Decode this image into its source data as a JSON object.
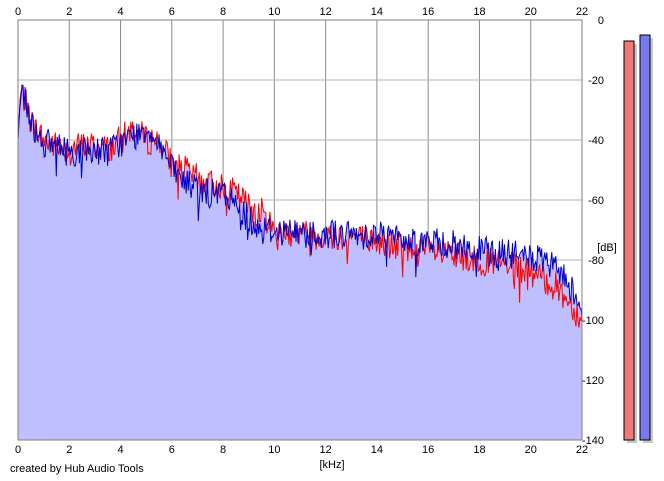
{
  "credit": "created by Hub Audio Tools",
  "chart_data": {
    "type": "area",
    "xlabel": "[kHz]",
    "ylabel": "[dB]",
    "xlim": [
      0,
      22
    ],
    "ylim": [
      -140,
      0
    ],
    "x_ticks": [
      "0",
      "2",
      "4",
      "6",
      "8",
      "10",
      "12",
      "14",
      "16",
      "18",
      "20",
      "22"
    ],
    "y_ticks": [
      "0",
      "-20",
      "-40",
      "-60",
      "-80",
      "-100",
      "-120",
      "-140"
    ],
    "grid": true,
    "series": [
      {
        "color": "#ff0000",
        "level_db": -7,
        "x": [
          0,
          0.1,
          0.25,
          0.5,
          1,
          1.5,
          2,
          2.5,
          3,
          3.5,
          4,
          4.5,
          5,
          5.5,
          6,
          6.5,
          7,
          7.5,
          8,
          8.5,
          9,
          9.5,
          10,
          11,
          12,
          13,
          14,
          15,
          16,
          17,
          18,
          19,
          20,
          21,
          21.5,
          22
        ],
        "values": [
          -40,
          -24,
          -26,
          -34,
          -40,
          -42,
          -43,
          -42,
          -42,
          -43,
          -40,
          -36,
          -40,
          -40,
          -48,
          -50,
          -53,
          -55,
          -55,
          -58,
          -62,
          -64,
          -70,
          -71,
          -72,
          -72,
          -74,
          -76,
          -77,
          -79,
          -80,
          -82,
          -84,
          -89,
          -94,
          -100
        ]
      },
      {
        "color": "#0000cc",
        "level_db": -5,
        "x": [
          0,
          0.1,
          0.25,
          0.5,
          1,
          1.5,
          2,
          2.5,
          3,
          3.5,
          4,
          4.5,
          5,
          5.5,
          6,
          6.5,
          7,
          7.5,
          8,
          8.5,
          9,
          9.5,
          10,
          11,
          12,
          13,
          14,
          15,
          16,
          17,
          18,
          19,
          20,
          21,
          21.5,
          22
        ],
        "values": [
          -40,
          -23,
          -25,
          -34,
          -41,
          -42,
          -44,
          -44,
          -43,
          -44,
          -41,
          -39,
          -36,
          -40,
          -50,
          -54,
          -56,
          -58,
          -58,
          -62,
          -66,
          -70,
          -70,
          -71,
          -71,
          -72,
          -71,
          -73,
          -74,
          -75,
          -77,
          -78,
          -79,
          -83,
          -88,
          -95
        ]
      }
    ]
  }
}
